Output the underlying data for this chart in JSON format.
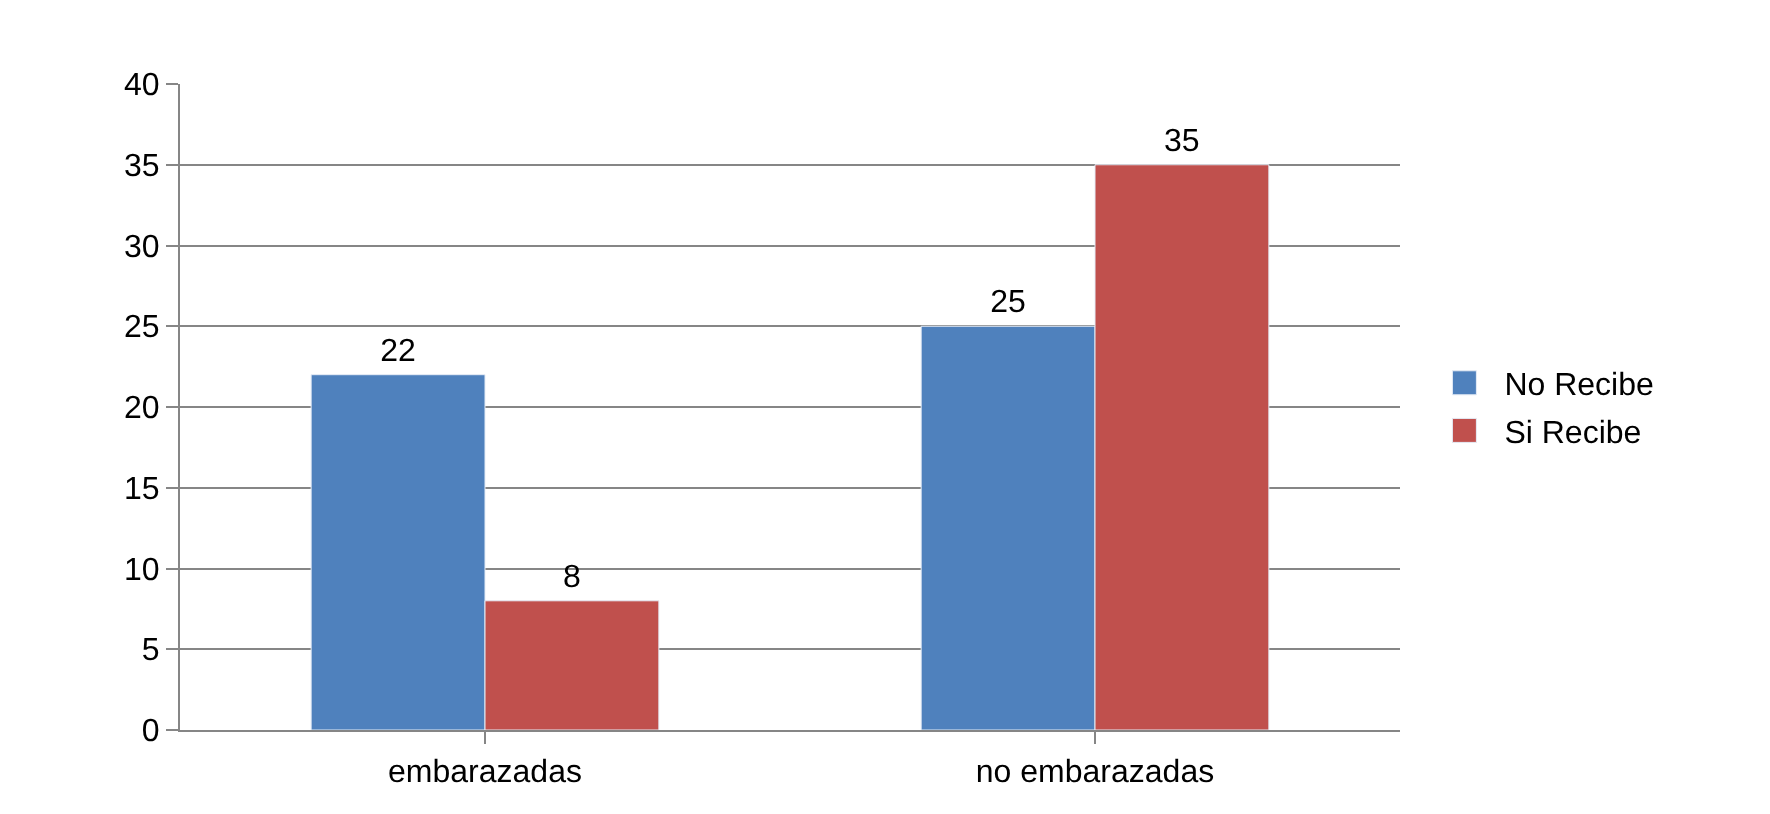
{
  "chart_data": {
    "type": "bar",
    "categories": [
      "embarazadas",
      "no embarazadas"
    ],
    "series": [
      {
        "name": "No Recibe",
        "color": "#4f81bd",
        "values": [
          22,
          25
        ]
      },
      {
        "name": "Si Recibe",
        "color": "#c0504d",
        "values": [
          8,
          35
        ]
      }
    ],
    "ylim": [
      0,
      40
    ],
    "yticks": [
      0,
      5,
      10,
      15,
      20,
      25,
      30,
      35,
      40
    ],
    "grid": "y",
    "legend": "right",
    "data_labels": true
  }
}
